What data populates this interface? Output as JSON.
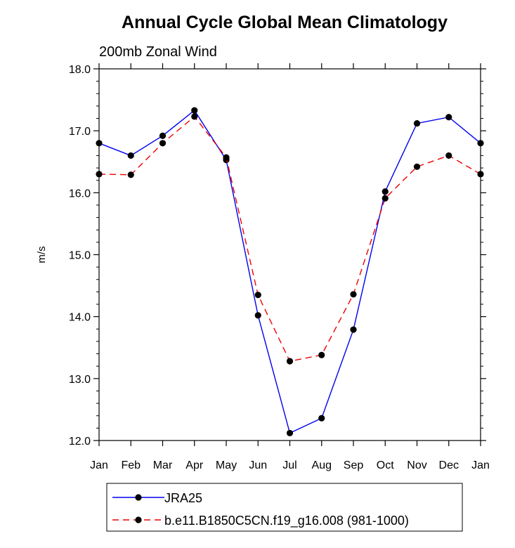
{
  "chart_data": {
    "type": "line",
    "title": "Annual Cycle Global Mean Climatology",
    "subtitle": "200mb Zonal Wind",
    "ylabel": "m/s",
    "xlabel": "",
    "categories": [
      "Jan",
      "Feb",
      "Mar",
      "Apr",
      "May",
      "Jun",
      "Jul",
      "Aug",
      "Sep",
      "Oct",
      "Nov",
      "Dec",
      "Jan"
    ],
    "ylim": [
      12.0,
      18.0
    ],
    "yticks": [
      "12.0",
      "13.0",
      "14.0",
      "15.0",
      "16.0",
      "17.0",
      "18.0"
    ],
    "grid": false,
    "legend_position": "bottom",
    "series": [
      {
        "name": "JRA25",
        "color": "#0000ee",
        "dash": "solid",
        "values": [
          16.8,
          16.6,
          16.92,
          17.33,
          16.53,
          14.02,
          12.12,
          12.36,
          13.79,
          16.02,
          17.12,
          17.22,
          16.8
        ]
      },
      {
        "name": "b.e11.B1850C5CN.f19_g16.008 (981-1000)",
        "color": "#ee0000",
        "dash": "dashed",
        "values": [
          16.3,
          16.29,
          16.8,
          17.23,
          16.57,
          14.35,
          13.28,
          13.38,
          14.36,
          15.91,
          16.42,
          16.6,
          16.3
        ]
      }
    ]
  }
}
